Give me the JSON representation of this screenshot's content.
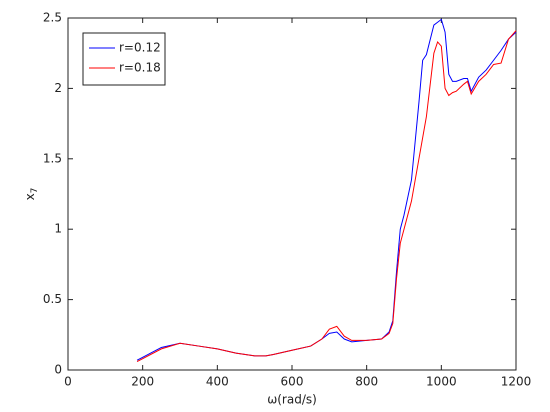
{
  "chart_data": {
    "type": "line",
    "xlabel": "ω(rad/s)",
    "ylabel_parts": [
      "x",
      "7"
    ],
    "x": [
      185,
      200,
      250,
      300,
      350,
      400,
      450,
      500,
      530,
      550,
      600,
      650,
      680,
      700,
      720,
      740,
      760,
      800,
      840,
      860,
      870,
      880,
      890,
      900,
      920,
      940,
      950,
      960,
      980,
      990,
      1000,
      1010,
      1020,
      1030,
      1040,
      1060,
      1070,
      1080,
      1100,
      1120,
      1140,
      1160,
      1180,
      1200
    ],
    "series": [
      {
        "name": "r=0.12",
        "color": "#0000ff",
        "values": [
          0.07,
          0.09,
          0.16,
          0.19,
          0.17,
          0.15,
          0.12,
          0.1,
          0.1,
          0.11,
          0.14,
          0.17,
          0.22,
          0.26,
          0.27,
          0.22,
          0.2,
          0.21,
          0.22,
          0.27,
          0.35,
          0.7,
          1.0,
          1.1,
          1.35,
          1.9,
          2.2,
          2.24,
          2.45,
          2.47,
          2.49,
          2.4,
          2.1,
          2.05,
          2.05,
          2.07,
          2.07,
          1.98,
          2.08,
          2.13,
          2.2,
          2.27,
          2.35,
          2.4
        ]
      },
      {
        "name": "r=0.18",
        "color": "#ff0000",
        "values": [
          0.06,
          0.08,
          0.15,
          0.19,
          0.17,
          0.15,
          0.12,
          0.1,
          0.1,
          0.11,
          0.14,
          0.17,
          0.22,
          0.29,
          0.31,
          0.24,
          0.21,
          0.21,
          0.22,
          0.26,
          0.33,
          0.65,
          0.9,
          1.0,
          1.2,
          1.5,
          1.65,
          1.8,
          2.25,
          2.33,
          2.3,
          2.0,
          1.95,
          1.97,
          1.98,
          2.03,
          2.05,
          1.96,
          2.05,
          2.1,
          2.17,
          2.18,
          2.35,
          2.41
        ]
      }
    ],
    "xlim": [
      0,
      1200
    ],
    "xticks": [
      0,
      200,
      400,
      600,
      800,
      1000,
      1200
    ],
    "ylim": [
      0,
      2.5
    ],
    "yticks": [
      0,
      0.5,
      1,
      1.5,
      2,
      2.5
    ],
    "legend": "upper-left"
  }
}
